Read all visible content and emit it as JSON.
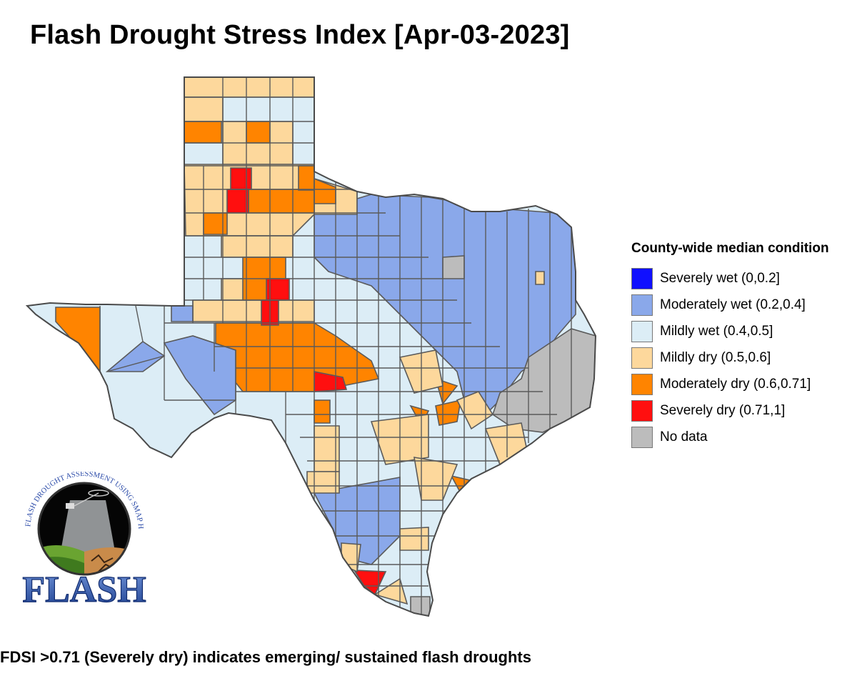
{
  "title": "Flash Drought Stress Index [Apr-03-2023]",
  "legend": {
    "title": "County-wide median condition",
    "items": [
      {
        "label": "Severely wet (0,0.2]",
        "color": "#1010ff"
      },
      {
        "label": "Moderately wet (0.2,0.4]",
        "color": "#8aa8ea"
      },
      {
        "label": "Mildly wet (0.4,0.5]",
        "color": "#dcedf6"
      },
      {
        "label": "Mildly dry (0.5,0.6]",
        "color": "#fdd89c"
      },
      {
        "label": "Moderately dry (0.6,0.71]",
        "color": "#ff8400"
      },
      {
        "label": "Severely dry (0.71,1]",
        "color": "#ff0f0f"
      },
      {
        "label": "No data",
        "color": "#bcbcbc"
      }
    ]
  },
  "footnote": "FDSI >0.71 (Severely dry) indicates emerging/ sustained flash droughts",
  "logo": {
    "arc_text": "FLASH DROUGHT ASSESSMENT USING SMAP HYDROLOGY",
    "wordmark": "FLASH"
  }
}
